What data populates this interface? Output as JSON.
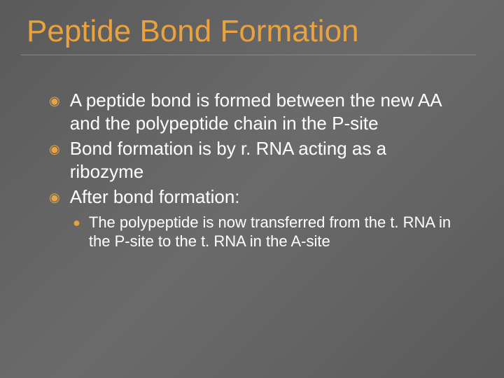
{
  "slide": {
    "title": "Peptide Bond Formation",
    "title_color": "#e8a23f",
    "title_fontsize": 44,
    "background_gradient": [
      "#5a5a5a",
      "#6b6b6b",
      "#5a5a5a"
    ],
    "bullet_color": "#e8a23f",
    "text_color": "#ffffff",
    "body_fontsize": 26,
    "sub_body_fontsize": 22,
    "underline_color": "#888888",
    "bullets": [
      {
        "text": "A peptide bond is formed between the new AA and the polypeptide chain in the P-site"
      },
      {
        "text": "Bond formation is by r. RNA acting as a ribozyme"
      },
      {
        "text": "After bond formation:",
        "sub_bullets": [
          {
            "text": "The polypeptide is now transferred from the t. RNA in the P-site to the t. RNA in the A-site"
          }
        ]
      }
    ]
  }
}
